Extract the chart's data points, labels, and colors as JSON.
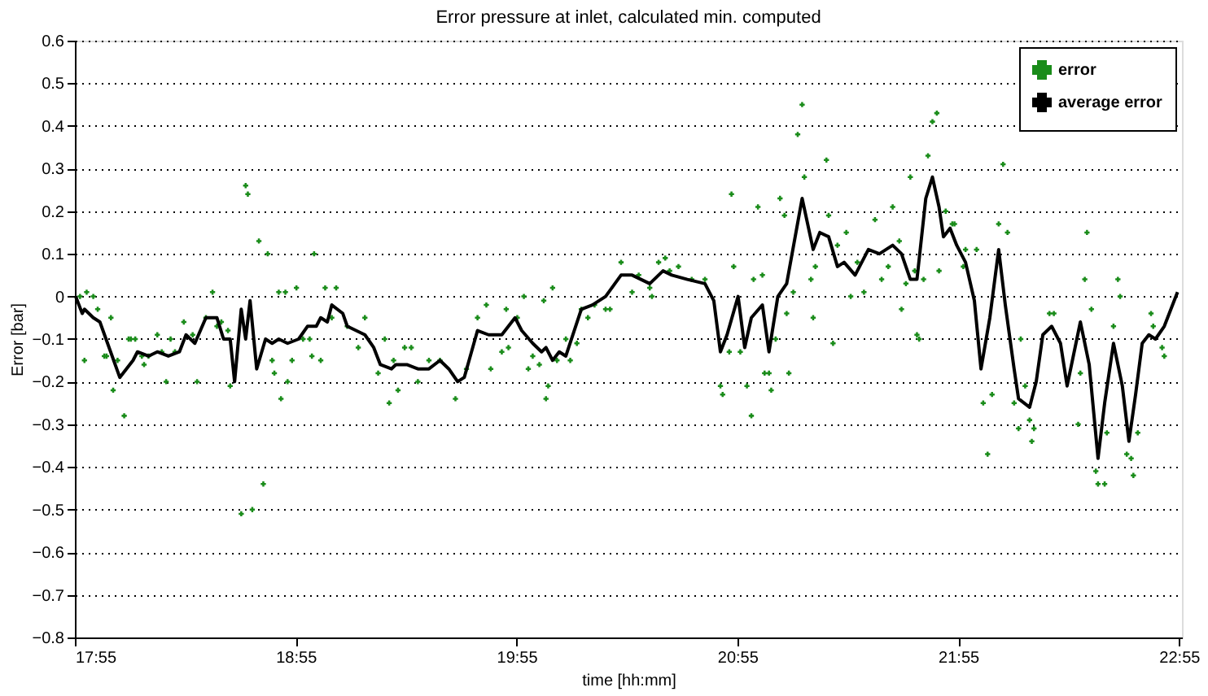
{
  "chart_data": {
    "type": "line",
    "title": "Error pressure at inlet, calculated min. computed",
    "xlabel": "time [hh:mm]",
    "ylabel": "Error [bar]",
    "xlim": [
      17.9167,
      22.93
    ],
    "ylim": [
      -0.8,
      0.6
    ],
    "xticks": [
      {
        "value": 17.9167,
        "label": "17:55"
      },
      {
        "value": 18.9167,
        "label": "18:55"
      },
      {
        "value": 19.9167,
        "label": "19:55"
      },
      {
        "value": 20.9167,
        "label": "20:55"
      },
      {
        "value": 21.9167,
        "label": "21:55"
      },
      {
        "value": 22.9167,
        "label": "22:55"
      }
    ],
    "yticks": [
      0.6,
      0.5,
      0.4,
      0.3,
      0.2,
      0.1,
      0,
      -0.1,
      -0.2,
      -0.3,
      -0.4,
      -0.5,
      -0.6,
      -0.7,
      -0.8
    ],
    "grid": "y",
    "legend": "top right",
    "series": [
      {
        "name": "error",
        "type": "scatter",
        "marker": "cross",
        "color": "#1a8c1a",
        "x": [
          17.94,
          17.97,
          18.0,
          17.96,
          18.02,
          18.05,
          18.06,
          18.08,
          18.09,
          18.11,
          18.14,
          18.16,
          18.17,
          18.19,
          18.22,
          18.23,
          18.25,
          18.29,
          18.31,
          18.33,
          18.35,
          18.37,
          18.41,
          18.45,
          18.47,
          18.51,
          18.54,
          18.56,
          18.58,
          18.61,
          18.62,
          18.67,
          18.69,
          18.7,
          18.72,
          18.75,
          18.77,
          18.79,
          18.81,
          18.82,
          18.84,
          18.85,
          18.87,
          18.88,
          18.9,
          18.92,
          18.95,
          18.98,
          18.99,
          19.0,
          19.03,
          19.05,
          19.08,
          19.1,
          19.15,
          19.2,
          19.23,
          19.29,
          19.32,
          19.34,
          19.36,
          19.38,
          19.41,
          19.44,
          19.47,
          19.52,
          19.57,
          19.64,
          19.69,
          19.74,
          19.78,
          19.8,
          19.85,
          19.87,
          19.88,
          19.92,
          19.95,
          19.97,
          19.99,
          20.02,
          20.04,
          20.05,
          20.06,
          20.08,
          20.1,
          20.14,
          20.16,
          20.19,
          20.21,
          20.24,
          20.27,
          20.32,
          20.34,
          20.39,
          20.44,
          20.47,
          20.52,
          20.53,
          20.56,
          20.59,
          20.61,
          20.65,
          20.71,
          20.77,
          20.84,
          20.85,
          20.88,
          20.89,
          20.9,
          20.93,
          20.96,
          20.98,
          20.99,
          21.01,
          21.03,
          21.04,
          21.06,
          21.07,
          21.09,
          21.11,
          21.13,
          21.14,
          21.15,
          21.17,
          21.19,
          21.21,
          21.22,
          21.25,
          21.26,
          21.27,
          21.32,
          21.33,
          21.35,
          21.37,
          21.41,
          21.43,
          21.46,
          21.49,
          21.54,
          21.57,
          21.6,
          21.62,
          21.65,
          21.66,
          21.68,
          21.7,
          21.72,
          21.73,
          21.74,
          21.76,
          21.78,
          21.8,
          21.82,
          21.83,
          21.86,
          21.89,
          21.9,
          21.94,
          21.95,
          22.0,
          22.03,
          22.05,
          22.07,
          22.1,
          22.12,
          22.14,
          22.17,
          22.19,
          22.2,
          22.22,
          22.24,
          22.25,
          22.26,
          22.33,
          22.35,
          22.46,
          22.47,
          22.49,
          22.5,
          22.52,
          22.54,
          22.55,
          22.58,
          22.59,
          22.62,
          22.64,
          22.65,
          22.68,
          22.7,
          22.71,
          22.73,
          22.79,
          22.8,
          22.84,
          22.85
        ],
        "values": [
          0.0,
          0.01,
          0.0,
          -0.15,
          -0.03,
          -0.14,
          -0.14,
          -0.05,
          -0.22,
          -0.15,
          -0.28,
          -0.1,
          -0.1,
          -0.1,
          -0.14,
          -0.16,
          -0.14,
          -0.09,
          -0.13,
          -0.2,
          -0.1,
          -0.13,
          -0.06,
          -0.09,
          -0.2,
          -0.05,
          0.01,
          -0.07,
          -0.06,
          -0.08,
          -0.21,
          -0.51,
          0.26,
          0.24,
          -0.5,
          0.13,
          -0.44,
          0.1,
          -0.15,
          -0.18,
          0.01,
          -0.24,
          0.01,
          -0.2,
          -0.15,
          0.02,
          -0.1,
          -0.1,
          -0.14,
          0.1,
          -0.15,
          0.02,
          -0.05,
          0.02,
          -0.07,
          -0.12,
          -0.05,
          -0.18,
          -0.1,
          -0.25,
          -0.15,
          -0.22,
          -0.12,
          -0.12,
          -0.2,
          -0.15,
          -0.15,
          -0.24,
          -0.17,
          -0.05,
          -0.02,
          -0.17,
          -0.13,
          -0.03,
          -0.12,
          -0.05,
          0.0,
          -0.17,
          -0.14,
          -0.16,
          -0.01,
          -0.24,
          -0.21,
          0.02,
          -0.15,
          -0.1,
          -0.15,
          -0.11,
          -0.03,
          -0.05,
          -0.02,
          -0.03,
          -0.03,
          0.08,
          0.01,
          0.05,
          0.02,
          0.0,
          0.08,
          0.09,
          0.06,
          0.07,
          0.04,
          0.04,
          -0.21,
          -0.23,
          -0.13,
          0.24,
          0.07,
          -0.13,
          -0.21,
          -0.28,
          0.04,
          0.21,
          0.05,
          -0.18,
          -0.18,
          -0.22,
          -0.1,
          0.23,
          0.19,
          -0.04,
          -0.18,
          0.01,
          0.38,
          0.45,
          0.28,
          0.04,
          -0.05,
          0.07,
          0.32,
          0.19,
          -0.11,
          0.12,
          0.15,
          0.0,
          0.08,
          0.01,
          0.18,
          0.04,
          0.07,
          0.21,
          0.13,
          -0.03,
          0.03,
          0.28,
          0.06,
          -0.09,
          -0.1,
          0.04,
          0.33,
          0.41,
          0.43,
          0.06,
          0.2,
          0.17,
          0.17,
          0.07,
          0.11,
          0.11,
          -0.25,
          -0.37,
          -0.23,
          0.17,
          0.31,
          0.15,
          -0.25,
          -0.31,
          -0.1,
          -0.21,
          -0.29,
          -0.34,
          -0.31,
          -0.04,
          -0.04,
          -0.3,
          -0.18,
          0.04,
          0.15,
          -0.03,
          -0.41,
          -0.44,
          -0.44,
          -0.32,
          -0.07,
          0.04,
          0.0,
          -0.37,
          -0.38,
          -0.42,
          -0.32,
          -0.04,
          -0.07,
          -0.12,
          -0.14
        ]
      },
      {
        "name": "average error",
        "marker": "none",
        "line_style": "solid",
        "color": "#000000",
        "x": [
          17.92,
          17.95,
          17.96,
          18.0,
          18.03,
          18.12,
          18.18,
          18.2,
          18.25,
          18.29,
          18.34,
          18.39,
          18.42,
          18.46,
          18.51,
          18.56,
          18.59,
          18.62,
          18.64,
          18.67,
          18.69,
          18.71,
          18.74,
          18.78,
          18.81,
          18.84,
          18.88,
          18.93,
          18.97,
          19.01,
          19.03,
          19.06,
          19.08,
          19.13,
          19.15,
          19.23,
          19.27,
          19.3,
          19.35,
          19.37,
          19.42,
          19.47,
          19.52,
          19.57,
          19.61,
          19.65,
          19.68,
          19.74,
          19.79,
          19.85,
          19.91,
          19.94,
          19.99,
          20.03,
          20.05,
          20.08,
          20.11,
          20.14,
          20.21,
          20.26,
          20.32,
          20.39,
          20.44,
          20.52,
          20.58,
          20.62,
          20.69,
          20.77,
          20.81,
          20.84,
          20.87,
          20.92,
          20.95,
          20.98,
          21.03,
          21.06,
          21.1,
          21.14,
          21.21,
          21.26,
          21.29,
          21.33,
          21.37,
          21.4,
          21.45,
          21.51,
          21.56,
          21.62,
          21.66,
          21.7,
          21.73,
          21.77,
          21.8,
          21.83,
          21.85,
          21.88,
          21.91,
          21.95,
          21.99,
          22.02,
          22.06,
          22.1,
          22.13,
          22.17,
          22.19,
          22.24,
          22.27,
          22.3,
          22.34,
          22.38,
          22.41,
          22.47,
          22.51,
          22.55,
          22.58,
          22.62,
          22.66,
          22.69,
          22.72,
          22.75,
          22.78,
          22.81,
          22.85,
          22.91
        ],
        "values": [
          0.0,
          -0.04,
          -0.03,
          -0.05,
          -0.06,
          -0.19,
          -0.15,
          -0.13,
          -0.14,
          -0.13,
          -0.14,
          -0.13,
          -0.09,
          -0.11,
          -0.05,
          -0.05,
          -0.1,
          -0.1,
          -0.2,
          -0.03,
          -0.1,
          -0.01,
          -0.17,
          -0.1,
          -0.11,
          -0.1,
          -0.11,
          -0.1,
          -0.07,
          -0.07,
          -0.05,
          -0.06,
          -0.02,
          -0.04,
          -0.07,
          -0.09,
          -0.12,
          -0.16,
          -0.17,
          -0.16,
          -0.16,
          -0.17,
          -0.17,
          -0.15,
          -0.17,
          -0.2,
          -0.19,
          -0.08,
          -0.09,
          -0.09,
          -0.05,
          -0.08,
          -0.11,
          -0.13,
          -0.12,
          -0.15,
          -0.13,
          -0.14,
          -0.03,
          -0.02,
          0.0,
          0.05,
          0.05,
          0.03,
          0.06,
          0.05,
          0.04,
          0.03,
          -0.01,
          -0.13,
          -0.09,
          0.0,
          -0.12,
          -0.05,
          -0.02,
          -0.13,
          0.0,
          0.03,
          0.23,
          0.11,
          0.15,
          0.14,
          0.07,
          0.08,
          0.05,
          0.11,
          0.1,
          0.12,
          0.1,
          0.04,
          0.04,
          0.23,
          0.28,
          0.21,
          0.14,
          0.16,
          0.12,
          0.08,
          -0.01,
          -0.17,
          -0.05,
          0.11,
          -0.02,
          -0.17,
          -0.24,
          -0.26,
          -0.2,
          -0.09,
          -0.07,
          -0.11,
          -0.21,
          -0.06,
          -0.16,
          -0.38,
          -0.25,
          -0.11,
          -0.21,
          -0.34,
          -0.23,
          -0.11,
          -0.09,
          -0.1,
          -0.07,
          0.01
        ]
      }
    ]
  }
}
